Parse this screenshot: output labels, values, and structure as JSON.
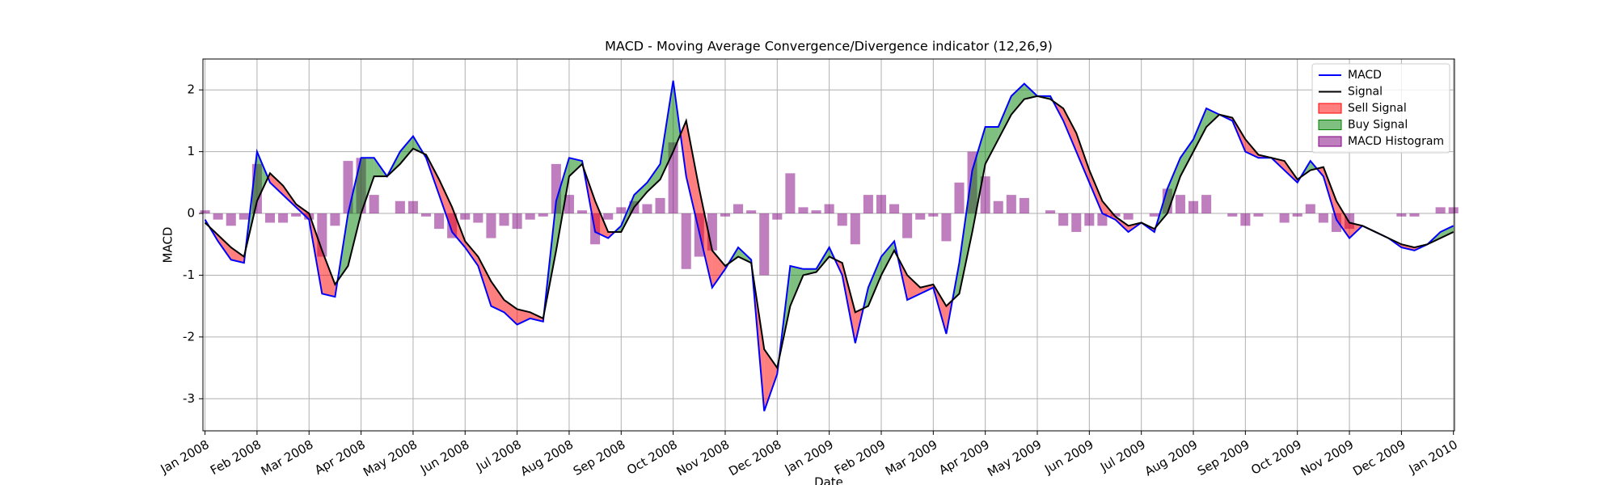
{
  "chart_data": {
    "type": "line",
    "title": "MACD - Moving Average Convergence/Divergence indicator (12,26,9)",
    "xlabel": "Date",
    "ylabel": "MACD",
    "grid": true,
    "legend": "upper right",
    "xlim": [
      -0.04,
      24.02
    ],
    "ylim": [
      -3.52,
      2.5
    ],
    "yticks": [
      -3,
      -2,
      -1,
      0,
      1,
      2
    ],
    "xticks": [
      {
        "value": 0,
        "label": "Jan 2008"
      },
      {
        "value": 1,
        "label": "Feb 2008"
      },
      {
        "value": 2,
        "label": "Mar 2008"
      },
      {
        "value": 3,
        "label": "Apr 2008"
      },
      {
        "value": 4,
        "label": "May 2008"
      },
      {
        "value": 5,
        "label": "Jun 2008"
      },
      {
        "value": 6,
        "label": "Jul 2008"
      },
      {
        "value": 7,
        "label": "Aug 2008"
      },
      {
        "value": 8,
        "label": "Sep 2008"
      },
      {
        "value": 9,
        "label": "Oct 2008"
      },
      {
        "value": 10,
        "label": "Nov 2008"
      },
      {
        "value": 11,
        "label": "Dec 2008"
      },
      {
        "value": 12,
        "label": "Jan 2009"
      },
      {
        "value": 13,
        "label": "Feb 2009"
      },
      {
        "value": 14,
        "label": "Mar 2009"
      },
      {
        "value": 15,
        "label": "Apr 2009"
      },
      {
        "value": 16,
        "label": "May 2009"
      },
      {
        "value": 17,
        "label": "Jun 2009"
      },
      {
        "value": 18,
        "label": "Jul 2009"
      },
      {
        "value": 19,
        "label": "Aug 2009"
      },
      {
        "value": 20,
        "label": "Sep 2009"
      },
      {
        "value": 21,
        "label": "Oct 2009"
      },
      {
        "value": 22,
        "label": "Nov 2009"
      },
      {
        "value": 23,
        "label": "Dec 2009"
      },
      {
        "value": 24,
        "label": "Jan 2010"
      }
    ],
    "x": [
      0,
      0.25,
      0.5,
      0.75,
      1,
      1.25,
      1.5,
      1.75,
      2,
      2.25,
      2.5,
      2.75,
      3,
      3.25,
      3.5,
      3.75,
      4,
      4.25,
      4.5,
      4.75,
      5,
      5.25,
      5.5,
      5.75,
      6,
      6.25,
      6.5,
      6.75,
      7,
      7.25,
      7.5,
      7.75,
      8,
      8.25,
      8.5,
      8.75,
      9,
      9.25,
      9.5,
      9.75,
      10,
      10.25,
      10.5,
      10.75,
      11,
      11.25,
      11.5,
      11.75,
      12,
      12.25,
      12.5,
      12.75,
      13,
      13.25,
      13.5,
      13.75,
      14,
      14.25,
      14.5,
      14.75,
      15,
      15.25,
      15.5,
      15.75,
      16,
      16.25,
      16.5,
      16.75,
      17,
      17.25,
      17.5,
      17.75,
      18,
      18.25,
      18.5,
      18.75,
      19,
      19.25,
      19.5,
      19.75,
      20,
      20.25,
      20.5,
      20.75,
      21,
      21.25,
      21.5,
      21.75,
      22,
      22.25,
      22.5,
      22.75,
      23,
      23.25,
      23.5,
      23.75,
      24
    ],
    "series": [
      {
        "name": "MACD",
        "color": "#0000ff",
        "values": [
          -0.1,
          -0.45,
          -0.75,
          -0.8,
          1.0,
          0.5,
          0.3,
          0.1,
          -0.1,
          -1.3,
          -1.35,
          0.0,
          0.9,
          0.9,
          0.6,
          1.0,
          1.25,
          0.9,
          0.3,
          -0.3,
          -0.55,
          -0.85,
          -1.5,
          -1.6,
          -1.8,
          -1.7,
          -1.75,
          0.2,
          0.9,
          0.85,
          -0.3,
          -0.4,
          -0.2,
          0.3,
          0.5,
          0.8,
          2.15,
          0.6,
          -0.3,
          -1.2,
          -0.9,
          -0.55,
          -0.75,
          -3.2,
          -2.6,
          -0.85,
          -0.9,
          -0.9,
          -0.55,
          -1.0,
          -2.1,
          -1.2,
          -0.7,
          -0.45,
          -1.4,
          -1.3,
          -1.2,
          -1.95,
          -0.8,
          0.7,
          1.4,
          1.4,
          1.9,
          2.1,
          1.9,
          1.9,
          1.5,
          1.0,
          0.5,
          0.0,
          -0.1,
          -0.3,
          -0.15,
          -0.3,
          0.4,
          0.9,
          1.2,
          1.7,
          1.6,
          1.5,
          1.0,
          0.9,
          0.9,
          0.7,
          0.5,
          0.85,
          0.6,
          -0.1,
          -0.4,
          -0.2,
          -0.3,
          -0.4,
          -0.55,
          -0.6,
          -0.5,
          -0.3,
          -0.2
        ]
      },
      {
        "name": "Signal",
        "color": "#000000",
        "values": [
          -0.15,
          -0.35,
          -0.55,
          -0.7,
          0.2,
          0.65,
          0.45,
          0.15,
          0.0,
          -0.6,
          -1.15,
          -0.85,
          0.0,
          0.6,
          0.6,
          0.8,
          1.05,
          0.95,
          0.55,
          0.1,
          -0.45,
          -0.7,
          -1.1,
          -1.4,
          -1.55,
          -1.6,
          -1.7,
          -0.6,
          0.6,
          0.8,
          0.2,
          -0.3,
          -0.3,
          0.1,
          0.35,
          0.55,
          1.0,
          1.5,
          0.4,
          -0.6,
          -0.85,
          -0.7,
          -0.8,
          -2.2,
          -2.5,
          -1.5,
          -1.0,
          -0.95,
          -0.7,
          -0.8,
          -1.6,
          -1.5,
          -1.0,
          -0.6,
          -1.0,
          -1.2,
          -1.15,
          -1.5,
          -1.3,
          -0.3,
          0.8,
          1.2,
          1.6,
          1.85,
          1.9,
          1.85,
          1.7,
          1.3,
          0.7,
          0.2,
          -0.05,
          -0.2,
          -0.15,
          -0.25,
          0.0,
          0.6,
          1.0,
          1.4,
          1.6,
          1.55,
          1.2,
          0.95,
          0.9,
          0.85,
          0.55,
          0.7,
          0.75,
          0.2,
          -0.15,
          -0.2,
          -0.3,
          -0.4,
          -0.5,
          -0.55,
          -0.5,
          -0.4,
          -0.3
        ]
      }
    ],
    "fills": [
      {
        "name": "Sell Signal",
        "color": "#ff0000"
      },
      {
        "name": "Buy Signal",
        "color": "#008000"
      }
    ],
    "histogram": {
      "name": "MACD Histogram",
      "color": "#800080",
      "values": [
        0.05,
        -0.1,
        -0.2,
        -0.1,
        0.8,
        -0.15,
        -0.15,
        -0.05,
        -0.1,
        -0.7,
        -0.2,
        0.85,
        0.9,
        0.3,
        0,
        0.2,
        0.2,
        -0.05,
        -0.25,
        -0.4,
        -0.1,
        -0.15,
        -0.4,
        -0.2,
        -0.25,
        -0.1,
        -0.05,
        0.8,
        0.3,
        0.05,
        -0.5,
        -0.1,
        0.1,
        0.2,
        0.15,
        0.25,
        1.15,
        -0.9,
        -0.7,
        -0.6,
        -0.05,
        0.15,
        0.05,
        -1.0,
        -0.1,
        0.65,
        0.1,
        0.05,
        0.15,
        -0.2,
        -0.5,
        0.3,
        0.3,
        0.15,
        -0.4,
        -0.1,
        -0.05,
        -0.45,
        0.5,
        1.0,
        0.6,
        0.2,
        0.3,
        0.25,
        0,
        0.05,
        -0.2,
        -0.3,
        -0.2,
        -0.2,
        -0.05,
        -0.1,
        0,
        -0.05,
        0.4,
        0.3,
        0.2,
        0.3,
        0,
        -0.05,
        -0.2,
        -0.05,
        0,
        -0.15,
        -0.05,
        0.15,
        -0.15,
        -0.3,
        -0.25,
        0,
        0,
        0,
        -0.05,
        -0.05,
        0,
        0.1,
        0.1
      ]
    }
  }
}
